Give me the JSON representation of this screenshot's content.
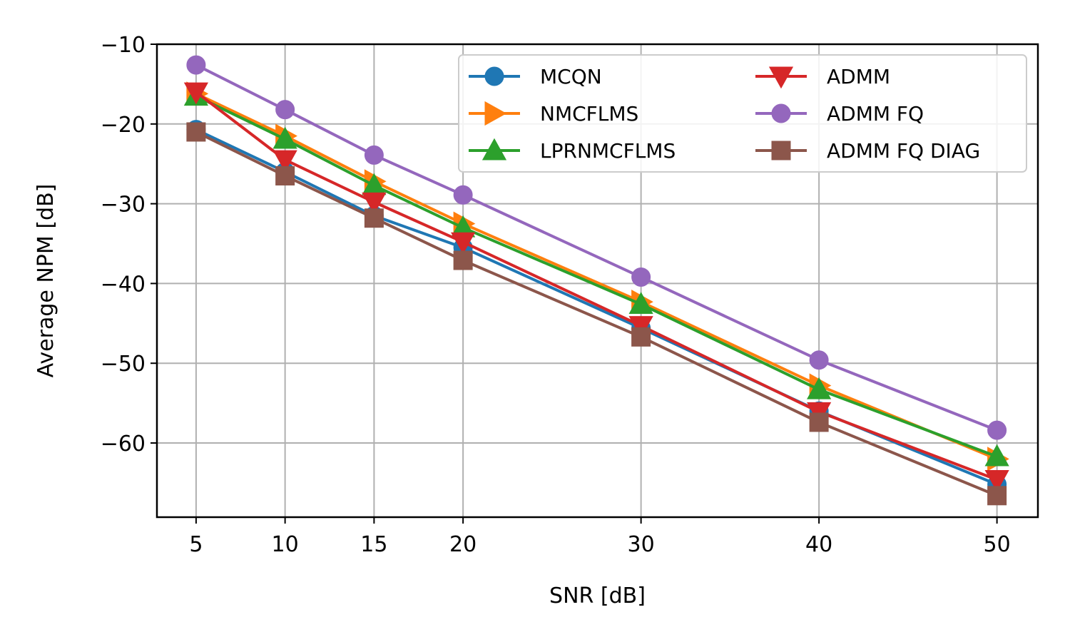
{
  "chart_data": {
    "type": "line",
    "xlabel": "SNR [dB]",
    "ylabel": "Average NPM [dB]",
    "x": [
      5,
      10,
      15,
      20,
      30,
      40,
      50
    ],
    "xticks": [
      5,
      10,
      15,
      20,
      30,
      40,
      50
    ],
    "xlim": [
      2.8,
      52.3
    ],
    "yticks": [
      -10,
      -20,
      -30,
      -40,
      -50,
      -60
    ],
    "ytick_labels": [
      "−10",
      "−20",
      "−30",
      "−40",
      "−50",
      "−60"
    ],
    "ylim": [
      -69.3,
      -10
    ],
    "grid": true,
    "legend_position": "top-right",
    "legend_columns": 2,
    "series": [
      {
        "name": "MCQN",
        "color": "#1f77b4",
        "marker": "circle",
        "values": [
          -20.7,
          -26.0,
          -31.5,
          -35.5,
          -45.6,
          -56.0,
          -65.2
        ]
      },
      {
        "name": "NMCFLMS",
        "color": "#ff7f0e",
        "marker": "triangle-right",
        "values": [
          -16.2,
          -21.5,
          -27.2,
          -32.5,
          -42.3,
          -52.8,
          -62.0
        ]
      },
      {
        "name": "LPRNMCFLMS",
        "color": "#2ca02c",
        "marker": "triangle-up",
        "values": [
          -16.5,
          -21.9,
          -27.7,
          -33.0,
          -42.6,
          -53.3,
          -61.7
        ]
      },
      {
        "name": "ADMM",
        "color": "#d62728",
        "marker": "triangle-down",
        "values": [
          -16.0,
          -24.5,
          -29.8,
          -34.8,
          -45.3,
          -56.1,
          -64.6
        ]
      },
      {
        "name": "ADMM FQ",
        "color": "#9467bd",
        "marker": "circle",
        "values": [
          -12.6,
          -18.2,
          -23.9,
          -28.9,
          -39.2,
          -49.6,
          -58.4
        ]
      },
      {
        "name": "ADMM FQ DIAG",
        "color": "#8c564b",
        "marker": "square",
        "values": [
          -21.0,
          -26.5,
          -31.8,
          -37.1,
          -46.7,
          -57.4,
          -66.6
        ]
      }
    ]
  }
}
